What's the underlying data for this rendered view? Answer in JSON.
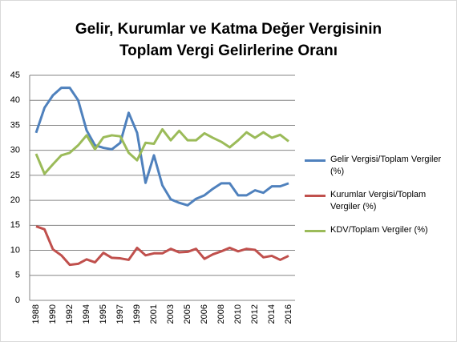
{
  "chart_data": {
    "type": "line",
    "title": [
      "Gelir, Kurumlar ve Katma Değer Vergisinin",
      "Toplam Vergi Gelirlerine Oranı"
    ],
    "categories": [
      "1988",
      null,
      "1990",
      null,
      "1992",
      null,
      "1994",
      null,
      "1995",
      null,
      "1997",
      null,
      "1999",
      null,
      "2001",
      null,
      "2003",
      null,
      "2005",
      null,
      "2006",
      null,
      "2008",
      null,
      "2010",
      null,
      "2012",
      null,
      "2014",
      null,
      "2016"
    ],
    "series": [
      {
        "name": "Gelir Vergisi/Toplam Vergiler (%)",
        "color": "#4f81bd",
        "values": [
          33.5,
          38.5,
          41,
          42.5,
          42.5,
          40,
          34,
          31,
          30.5,
          30.2,
          31.5,
          37.5,
          33.5,
          23.5,
          29,
          23,
          20.2,
          19.5,
          19,
          20.3,
          21,
          22.3,
          23.4,
          23.4,
          21,
          21,
          22,
          21.5,
          22.8,
          22.8,
          23.4
        ]
      },
      {
        "name": "Kurumlar Vergisi/Toplam Vergiler (%)",
        "color": "#c0504d",
        "values": [
          14.8,
          14.2,
          10.2,
          9,
          7.1,
          7.3,
          8.2,
          7.6,
          9.5,
          8.5,
          8.4,
          8.1,
          10.5,
          9,
          9.4,
          9.4,
          10.3,
          9.6,
          9.7,
          10.3,
          8.3,
          9.2,
          9.8,
          10.5,
          9.8,
          10.3,
          10.1,
          8.6,
          8.9,
          8.1,
          8.9
        ]
      },
      {
        "name": "KDV/Toplam Vergiler (%)",
        "color": "#9bbb59",
        "values": [
          29.3,
          25.3,
          27.2,
          29,
          29.5,
          31,
          33,
          30.2,
          32.6,
          33,
          32.8,
          29.5,
          28,
          31.5,
          31.3,
          34.2,
          32,
          33.9,
          32,
          32,
          33.4,
          32.5,
          31.7,
          30.6,
          32,
          33.6,
          32.5,
          33.6,
          32.5,
          33.1,
          31.8
        ]
      }
    ],
    "ylim": [
      0,
      45
    ],
    "yticks": [
      0,
      5,
      10,
      15,
      20,
      25,
      30,
      35,
      40,
      45
    ],
    "grid": true,
    "legend": "right"
  }
}
